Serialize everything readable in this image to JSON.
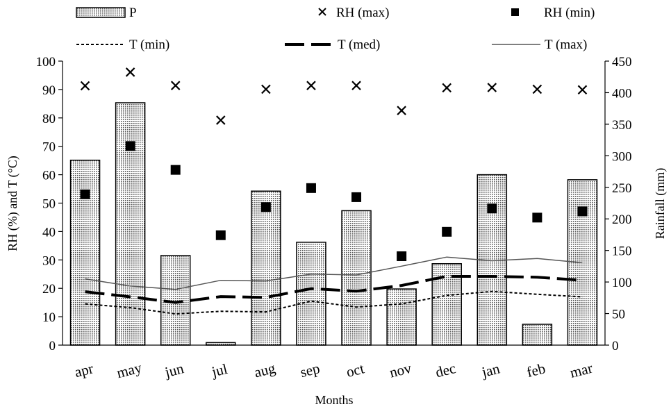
{
  "chart_data": {
    "type": "bar+line+scatter",
    "xlabel": "Months",
    "ylabel_left": "RH (%) and T (°C)",
    "ylabel_right": "Rainfall (mm)",
    "ylim_left": [
      0,
      100
    ],
    "ylim_right": [
      0,
      450
    ],
    "yticks_left": [
      0,
      10,
      20,
      30,
      40,
      50,
      60,
      70,
      80,
      90,
      100
    ],
    "yticks_right": [
      0,
      50,
      100,
      150,
      200,
      250,
      300,
      350,
      400,
      450
    ],
    "categories": [
      "apr",
      "may",
      "jun",
      "jul",
      "aug",
      "sep",
      "oct",
      "nov",
      "dec",
      "jan",
      "feb",
      "mar"
    ],
    "legend_position": "top",
    "grid": false,
    "series": [
      {
        "name": "P",
        "kind": "bar",
        "axis": "right",
        "color": "#bdbdbd",
        "values": [
          293,
          384,
          142,
          4,
          244,
          163,
          213,
          89,
          129,
          270,
          33,
          262
        ]
      },
      {
        "name": "RH (max)",
        "kind": "scatter",
        "marker": "x",
        "axis": "left",
        "color": "#000000",
        "values": [
          91.3,
          96.1,
          91.4,
          79.2,
          90.1,
          91.4,
          91.4,
          82.6,
          90.6,
          90.7,
          90.1,
          89.9
        ]
      },
      {
        "name": "RH (min)",
        "kind": "scatter",
        "marker": "square",
        "axis": "left",
        "color": "#000000",
        "values": [
          53.1,
          70.1,
          61.7,
          38.7,
          48.6,
          55.3,
          52.1,
          31.3,
          39.9,
          48.1,
          44.9,
          47.1
        ]
      },
      {
        "name": "T (min)",
        "kind": "line",
        "style": "dotted",
        "axis": "left",
        "color": "#000000",
        "values": [
          14.5,
          13.2,
          11.0,
          11.9,
          11.7,
          15.5,
          13.4,
          14.5,
          17.5,
          18.9,
          17.9,
          17.0
        ]
      },
      {
        "name": "T (med)",
        "kind": "line",
        "style": "longdash",
        "axis": "left",
        "color": "#000000",
        "values": [
          18.8,
          17.0,
          15.0,
          17.1,
          16.8,
          19.9,
          19.0,
          21.0,
          24.2,
          24.2,
          23.9,
          22.8
        ]
      },
      {
        "name": "T (max)",
        "kind": "line",
        "style": "solid",
        "axis": "left",
        "color": "#555555",
        "values": [
          23.3,
          20.8,
          19.6,
          22.8,
          22.6,
          25.0,
          24.7,
          27.8,
          31.0,
          29.7,
          30.5,
          29.0
        ]
      }
    ]
  }
}
